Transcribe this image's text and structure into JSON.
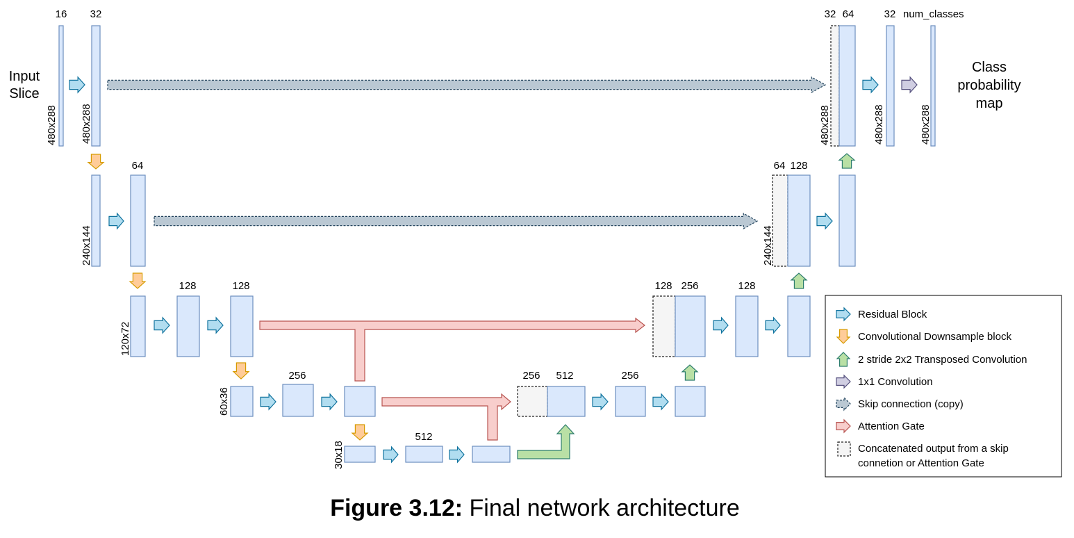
{
  "input_label": [
    "Input",
    "Slice"
  ],
  "output_label": [
    "Class",
    "probability",
    "map"
  ],
  "channels": {
    "r1_a": "16",
    "r1_b": "32",
    "r1_cat_skip": "32",
    "r1_cat": "64",
    "r1_c": "32",
    "r1_out": "num_classes",
    "r2_b": "64",
    "r2_cat_skip": "64",
    "r2_cat": "128",
    "r3_b": "128",
    "r3_c": "128",
    "r3_cat_skip": "128",
    "r3_cat": "256",
    "r3_d": "128",
    "r4_b": "256",
    "r4_cat_skip": "256",
    "r4_cat": "512",
    "r4_d": "256",
    "r5_b": "512"
  },
  "sizes": {
    "s480": "480x288",
    "s240": "240x144",
    "s120": "120x72",
    "s60": "60x36",
    "s30": "30x18"
  },
  "legend": {
    "items": [
      {
        "label": "Residual Block",
        "icon": "residual-arrow"
      },
      {
        "label": "Convolutional Downsample block",
        "icon": "downsample-arrow"
      },
      {
        "label": "2 stride 2x2 Transposed Convolution",
        "icon": "upsample-arrow"
      },
      {
        "label": "1x1 Convolution",
        "icon": "conv1x1-arrow"
      },
      {
        "label": "Skip connection (copy)",
        "icon": "skip-arrow"
      },
      {
        "label": "Attention Gate",
        "icon": "attention-arrow"
      },
      {
        "label": "Concatenated output from a skip",
        "label2": "connetion or Attention Gate",
        "icon": "concat-box"
      }
    ]
  },
  "caption": {
    "bold": "Figure 3.12:",
    "text": " Final network architecture"
  },
  "colors": {
    "block_fill": "#dae8fc",
    "block_stroke": "#6c8ebf",
    "residual": "#b1ddf0",
    "downsample": "#ffcc99",
    "upsample": "#b9e0a5",
    "conv1x1": "#d0cee2",
    "skip": "#bac8d3",
    "attention": "#f8cecc",
    "concat": "#f5f5f5"
  }
}
